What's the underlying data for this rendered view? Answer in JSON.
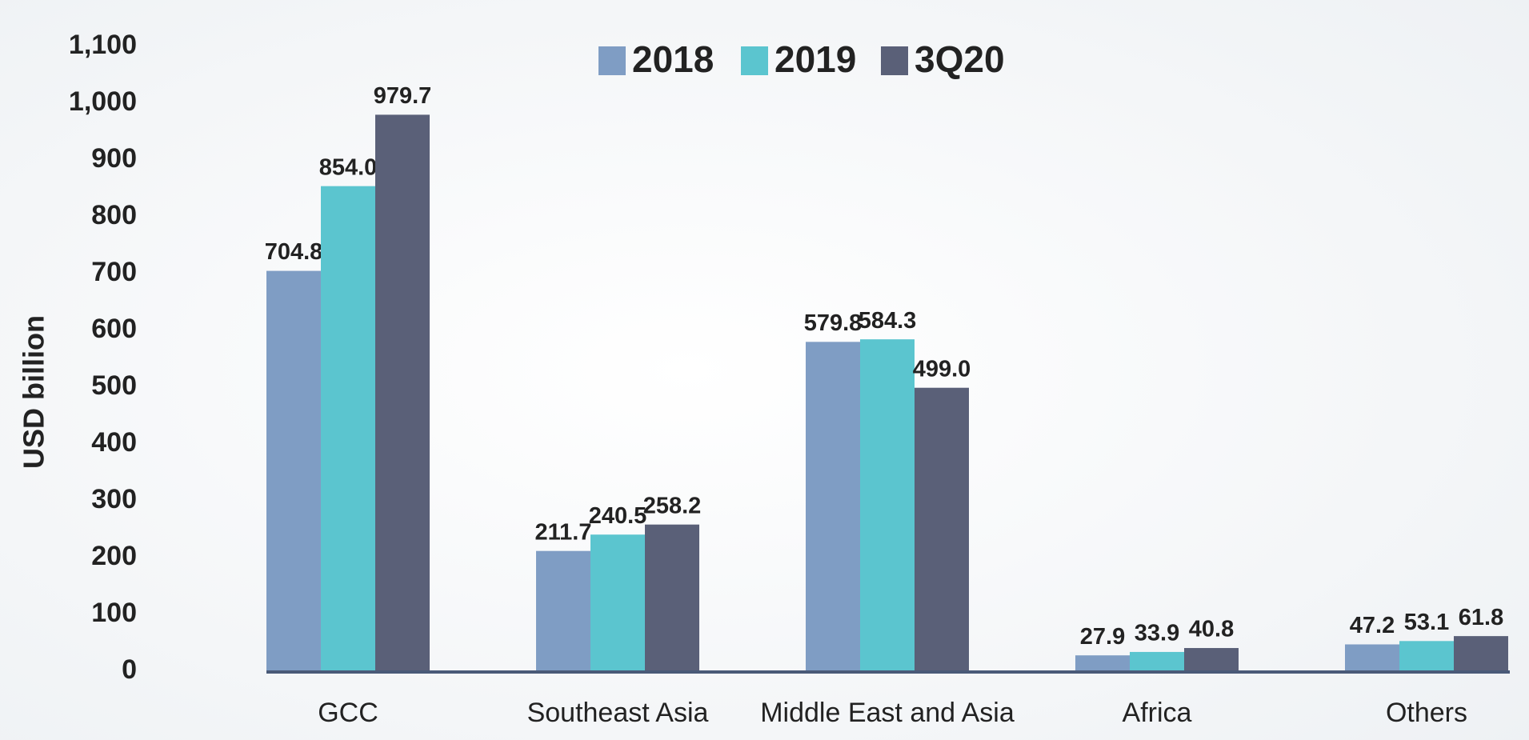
{
  "chart_data": {
    "type": "bar",
    "ylabel": "USD billion",
    "categories": [
      "GCC",
      "Southeast Asia",
      "Middle East and Asia",
      "Africa",
      "Others"
    ],
    "series": [
      {
        "name": "2018",
        "color": "#7f9dc4",
        "values": [
          704.8,
          211.7,
          579.8,
          27.9,
          47.2
        ],
        "value_labels": [
          "704.8",
          "211.7",
          "579.8",
          "27.9",
          "47.2"
        ]
      },
      {
        "name": "2019",
        "color": "#5bc5cf",
        "values": [
          854.0,
          240.5,
          584.3,
          33.9,
          53.1
        ],
        "value_labels": [
          "854.0",
          "240.5",
          "584.3",
          "33.9",
          "53.1"
        ]
      },
      {
        "name": "3Q20",
        "color": "#5a6078",
        "values": [
          979.7,
          258.2,
          499.0,
          40.8,
          61.8
        ],
        "value_labels": [
          "979.7",
          "258.2",
          "499.0",
          "40.8",
          "61.8"
        ]
      }
    ],
    "ylim": [
      0,
      1100
    ],
    "yticks": [
      0,
      100,
      200,
      300,
      400,
      500,
      600,
      700,
      800,
      900,
      {
        "value": 1000,
        "label": "1,000"
      },
      {
        "value": 1100,
        "label": "1,100"
      }
    ],
    "legend": "top"
  }
}
